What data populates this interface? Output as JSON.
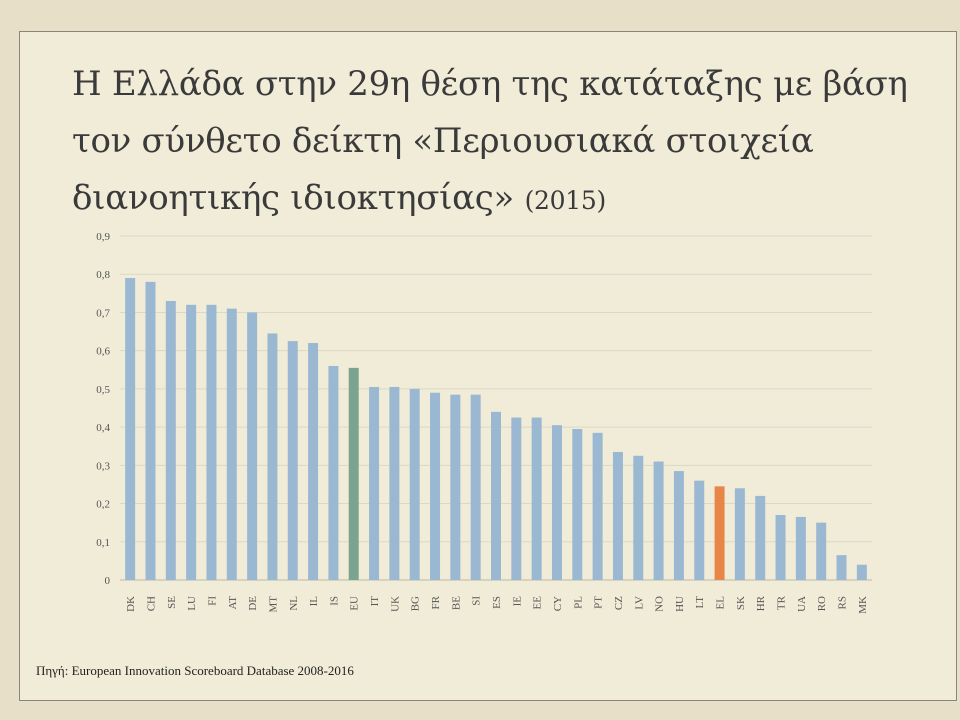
{
  "slide": {
    "title_main": "Η Ελλάδα στην 29η θέση της κατάταξης με βάση τον σύνθετο δείκτη «Περιουσιακά στοιχεία διανοητικής ιδιοκτησίας»",
    "title_year": "(2015)",
    "source": "Πηγή: European Innovation Scoreboard Database 2008-2016"
  },
  "colors": {
    "bar_default": "#9bb8d3",
    "bar_eu": "#7aa48f",
    "bar_el": "#e8864a",
    "grid": "#dcd8c6",
    "text": "#555555"
  },
  "chart_data": {
    "type": "bar",
    "categories": [
      "DK",
      "CH",
      "SE",
      "LU",
      "FI",
      "AT",
      "DE",
      "MT",
      "NL",
      "IL",
      "IS",
      "EU",
      "IT",
      "UK",
      "BG",
      "FR",
      "BE",
      "SI",
      "ES",
      "IE",
      "EE",
      "CY",
      "PL",
      "PT",
      "CZ",
      "LV",
      "NO",
      "HU",
      "LT",
      "EL",
      "SK",
      "HR",
      "TR",
      "UA",
      "RO",
      "RS",
      "MK"
    ],
    "values": [
      0.79,
      0.78,
      0.73,
      0.72,
      0.72,
      0.71,
      0.7,
      0.645,
      0.625,
      0.62,
      0.56,
      0.555,
      0.505,
      0.505,
      0.5,
      0.49,
      0.485,
      0.485,
      0.44,
      0.425,
      0.425,
      0.405,
      0.395,
      0.385,
      0.335,
      0.325,
      0.31,
      0.285,
      0.26,
      0.245,
      0.24,
      0.22,
      0.17,
      0.165,
      0.15,
      0.065,
      0.04
    ],
    "highlight": {
      "EU": "bar_eu",
      "EL": "bar_el"
    },
    "ylim": [
      0,
      0.9
    ],
    "yticks": [
      "0",
      "0,1",
      "0,2",
      "0,3",
      "0,4",
      "0,5",
      "0,6",
      "0,7",
      "0,8",
      "0,9"
    ],
    "title": "",
    "xlabel": "",
    "ylabel": "",
    "grid": true,
    "legend": "none"
  }
}
